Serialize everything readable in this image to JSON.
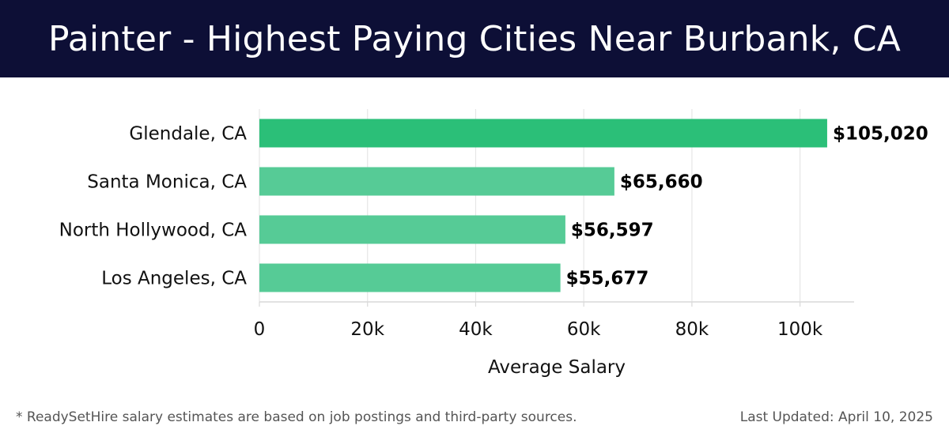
{
  "header": {
    "title": "Painter - Highest Paying Cities Near Burbank, CA"
  },
  "chart_data": {
    "type": "bar",
    "orientation": "horizontal",
    "categories": [
      "Glendale, CA",
      "Santa Monica, CA",
      "North Hollywood, CA",
      "Los Angeles, CA"
    ],
    "values": [
      105020,
      65660,
      56597,
      55677
    ],
    "value_labels": [
      "$105,020",
      "$65,660",
      "$56,597",
      "$55,677"
    ],
    "xlabel": "Average Salary",
    "ylabel": "",
    "xlim": [
      0,
      110000
    ],
    "x_ticks": [
      0,
      20000,
      40000,
      60000,
      80000,
      100000
    ],
    "x_tick_labels": [
      "0",
      "20k",
      "40k",
      "60k",
      "80k",
      "100k"
    ],
    "grid": true,
    "colors": {
      "top_bar": "#2bbf78",
      "other_bars": "#56cb96",
      "grid": "#e6e6e6"
    }
  },
  "footer": {
    "note": "* ReadySetHire salary estimates are based on job postings and third-party sources.",
    "updated": "Last Updated: April 10, 2025"
  }
}
